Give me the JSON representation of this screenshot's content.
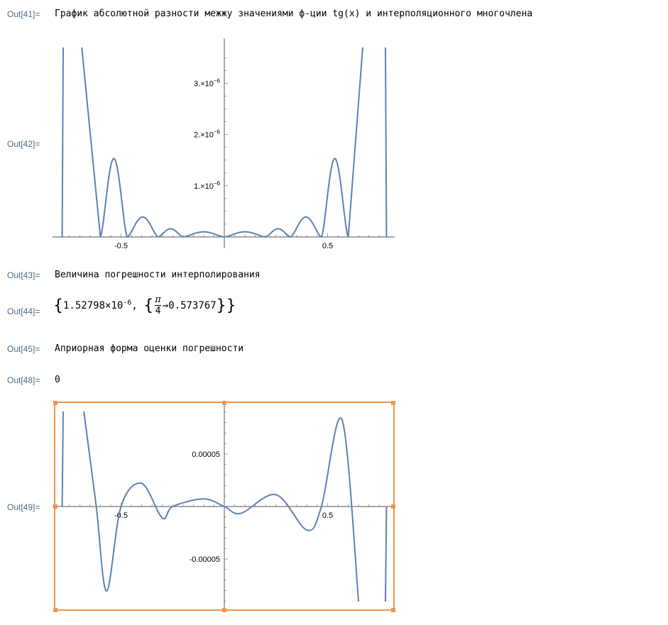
{
  "cells": {
    "out41": {
      "label": "Out[41]=",
      "text": "График абсолютной разности межжу значениями ф-ции tg(x) и интерполяционного многочлена"
    },
    "out42": {
      "label": "Out[42]="
    },
    "out43": {
      "label": "Out[43]=",
      "text": "Величина погрешности интерполирования"
    },
    "out44": {
      "label": "Out[44]=",
      "mantissa": "1.52798",
      "times": "×",
      "base": "10",
      "exponent": "-6",
      "pi": "π",
      "four": "4",
      "arrow": "→",
      "value": "0.573767",
      "open_brace": "{",
      "close_brace": "}",
      "comma": ","
    },
    "out45": {
      "label": "Out[45]=",
      "text": "Априорная форма оценки погрешности"
    },
    "out48": {
      "label": "Out[48]=",
      "text": "0"
    },
    "out49": {
      "label": "Out[49]="
    }
  },
  "plot1": {
    "xticks": [
      "-0.5",
      "0.5"
    ],
    "yticks": [
      {
        "label": "1.×10",
        "exp": "−6"
      },
      {
        "label": "2.×10",
        "exp": "−6"
      },
      {
        "label": "3.×10",
        "exp": "−6"
      }
    ],
    "line_color": "#5e81b5"
  },
  "plot2": {
    "xticks": [
      "-0.5",
      "0.5"
    ],
    "yticks": [
      "0.00005",
      "-0.00005"
    ],
    "line_color": "#5e81b5",
    "selection_color": "#f0964a"
  },
  "chart_data": [
    {
      "type": "line",
      "title": "",
      "xlabel": "",
      "ylabel": "",
      "xlim": [
        -0.79,
        0.79
      ],
      "ylim": [
        0,
        3.7e-06
      ],
      "series": [
        {
          "x": [
            -0.785,
            -0.68,
            -0.6,
            -0.54,
            -0.47,
            -0.4,
            -0.32,
            -0.26,
            -0.2,
            -0.1,
            0,
            0.1,
            0.2,
            0.26,
            0.32,
            0.4,
            0.47,
            0.54,
            0.6,
            0.68,
            0.785
          ],
          "y": [
            3.7e-06,
            3.7e-06,
            0,
            1.53e-06,
            0,
            3.9e-07,
            0,
            1.6e-07,
            0,
            1e-07,
            0,
            1e-07,
            0,
            1.6e-07,
            0,
            3.9e-07,
            0,
            1.53e-06,
            0,
            3.7e-06,
            3.7e-06
          ]
        }
      ]
    },
    {
      "type": "line",
      "title": "",
      "xlabel": "",
      "ylabel": "",
      "xlim": [
        -0.79,
        0.79
      ],
      "ylim": [
        -9.05e-05,
        9.05e-05
      ],
      "series": [
        {
          "x": [
            -0.785,
            -0.68,
            -0.62,
            -0.57,
            -0.5,
            -0.4,
            -0.3,
            -0.25,
            -0.1,
            0,
            0.08,
            0.25,
            0.4,
            0.47,
            0.57,
            0.65,
            0.75,
            0.785
          ],
          "y": [
            9.05e-05,
            9.05e-05,
            0,
            -8.05e-05,
            0,
            2.2e-05,
            -1.1e-05,
            0,
            7.2e-06,
            0,
            -6.5e-06,
            1.12e-05,
            -2.25e-05,
            0,
            8.25e-05,
            -9.05e-05,
            -9.05e-05,
            0
          ]
        }
      ]
    }
  ]
}
